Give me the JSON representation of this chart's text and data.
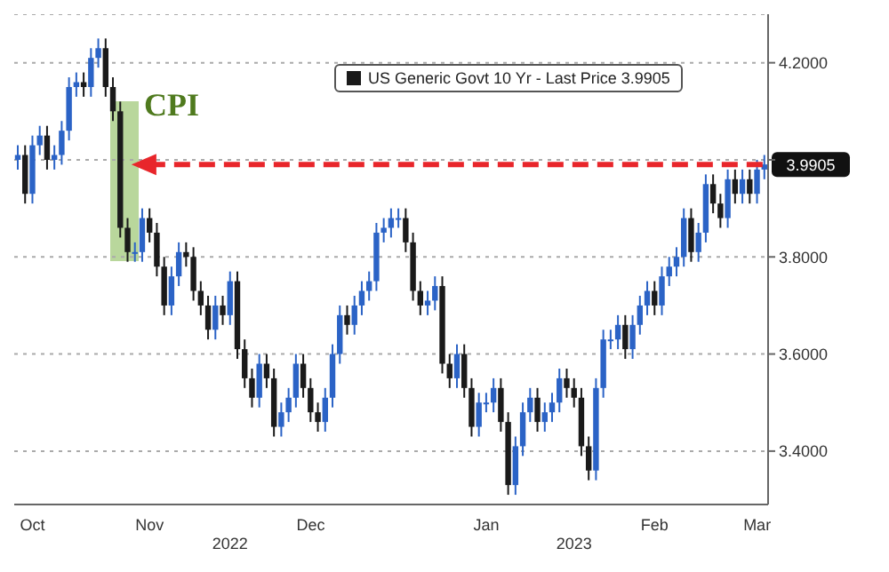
{
  "chart_data": {
    "type": "candlestick",
    "categories": [
      null,
      null,
      "Oct",
      null,
      null,
      null,
      null,
      null,
      null,
      null,
      null,
      null,
      null,
      null,
      null,
      null,
      null,
      null,
      "Nov",
      null,
      null,
      null,
      null,
      null,
      null,
      null,
      null,
      null,
      null,
      null,
      null,
      null,
      null,
      null,
      null,
      null,
      null,
      null,
      null,
      null,
      "Dec",
      null,
      null,
      null,
      null,
      null,
      null,
      null,
      null,
      null,
      null,
      null,
      null,
      null,
      null,
      null,
      null,
      null,
      null,
      null,
      null,
      null,
      null,
      null,
      "Jan",
      null,
      null,
      null,
      null,
      null,
      null,
      null,
      null,
      null,
      null,
      null,
      null,
      null,
      null,
      null,
      null,
      null,
      null,
      null,
      null,
      null,
      null,
      "Feb",
      null,
      null,
      null,
      null,
      null,
      null,
      null,
      null,
      null,
      null,
      null,
      null,
      null,
      "Mar",
      null
    ],
    "series": [
      {
        "name": "US Generic Govt 10 Yr - Last Price 3.9905",
        "color": "#1a1a1a",
        "colors": [
          "#2b63c6",
          "#1a1a1a",
          "#2b63c6",
          "#2b63c6",
          "#1a1a1a",
          "#2b63c6",
          "#2b63c6",
          "#2b63c6",
          "#2b63c6",
          "#1a1a1a",
          "#2b63c6",
          "#2b63c6",
          "#1a1a1a",
          "#1a1a1a",
          "#1a1a1a",
          "#1a1a1a",
          "#2b63c6",
          "#2b63c6",
          "#1a1a1a",
          "#1a1a1a",
          "#1a1a1a",
          "#2b63c6",
          "#2b63c6",
          "#1a1a1a",
          "#1a1a1a",
          "#1a1a1a",
          "#1a1a1a",
          "#2b63c6",
          "#1a1a1a",
          "#2b63c6",
          "#1a1a1a",
          "#1a1a1a",
          "#1a1a1a",
          "#2b63c6",
          "#1a1a1a",
          "#1a1a1a",
          "#2b63c6",
          "#2b63c6",
          "#2b63c6",
          "#1a1a1a",
          "#1a1a1a",
          "#1a1a1a",
          "#2b63c6",
          "#2b63c6",
          "#2b63c6",
          "#1a1a1a",
          "#2b63c6",
          "#2b63c6",
          "#2b63c6",
          "#2b63c6",
          "#2b63c6",
          "#2b63c6",
          "#2b63c6",
          "#1a1a1a",
          "#1a1a1a",
          "#1a1a1a",
          "#2b63c6",
          "#2b63c6",
          "#1a1a1a",
          "#1a1a1a",
          "#2b63c6",
          "#1a1a1a",
          "#1a1a1a",
          "#2b63c6",
          "#2b63c6",
          "#2b63c6",
          "#1a1a1a",
          "#1a1a1a",
          "#2b63c6",
          "#2b63c6",
          "#2b63c6",
          "#1a1a1a",
          "#2b63c6",
          "#2b63c6",
          "#2b63c6",
          "#1a1a1a",
          "#1a1a1a",
          "#1a1a1a",
          "#1a1a1a",
          "#2b63c6",
          "#2b63c6",
          "#2b63c6",
          "#2b63c6",
          "#1a1a1a",
          "#2b63c6",
          "#2b63c6",
          "#2b63c6",
          "#1a1a1a",
          "#2b63c6",
          "#2b63c6",
          "#2b63c6",
          "#2b63c6",
          "#1a1a1a",
          "#2b63c6",
          "#2b63c6",
          "#1a1a1a",
          "#1a1a1a",
          "#2b63c6",
          "#1a1a1a",
          "#2b63c6",
          "#1a1a1a",
          "#2b63c6",
          "#2b63c6"
        ],
        "ohlc": [
          [
            4.0,
            4.03,
            3.98,
            4.01
          ],
          [
            4.01,
            4.03,
            3.91,
            3.93
          ],
          [
            3.93,
            4.05,
            3.91,
            4.03
          ],
          [
            4.03,
            4.07,
            4.01,
            4.05
          ],
          [
            4.05,
            4.07,
            3.98,
            4.0
          ],
          [
            4.0,
            4.03,
            3.98,
            4.01
          ],
          [
            4.01,
            4.08,
            3.99,
            4.06
          ],
          [
            4.06,
            4.17,
            4.04,
            4.15
          ],
          [
            4.15,
            4.18,
            4.13,
            4.16
          ],
          [
            4.16,
            4.18,
            4.13,
            4.15
          ],
          [
            4.15,
            4.23,
            4.13,
            4.21
          ],
          [
            4.21,
            4.25,
            4.19,
            4.23
          ],
          [
            4.23,
            4.25,
            4.13,
            4.15
          ],
          [
            4.15,
            4.17,
            4.08,
            4.1
          ],
          [
            4.1,
            4.12,
            3.84,
            3.86
          ],
          [
            3.86,
            3.88,
            3.79,
            3.81
          ],
          [
            3.81,
            3.83,
            3.79,
            3.81
          ],
          [
            3.81,
            3.9,
            3.79,
            3.88
          ],
          [
            3.88,
            3.9,
            3.83,
            3.85
          ],
          [
            3.85,
            3.87,
            3.76,
            3.78
          ],
          [
            3.78,
            3.8,
            3.68,
            3.7
          ],
          [
            3.7,
            3.78,
            3.68,
            3.76
          ],
          [
            3.76,
            3.83,
            3.74,
            3.81
          ],
          [
            3.81,
            3.83,
            3.78,
            3.8
          ],
          [
            3.8,
            3.82,
            3.71,
            3.73
          ],
          [
            3.73,
            3.75,
            3.68,
            3.7
          ],
          [
            3.7,
            3.72,
            3.63,
            3.65
          ],
          [
            3.65,
            3.72,
            3.63,
            3.7
          ],
          [
            3.7,
            3.72,
            3.66,
            3.68
          ],
          [
            3.68,
            3.77,
            3.66,
            3.75
          ],
          [
            3.75,
            3.77,
            3.59,
            3.61
          ],
          [
            3.61,
            3.63,
            3.53,
            3.55
          ],
          [
            3.55,
            3.57,
            3.49,
            3.51
          ],
          [
            3.51,
            3.6,
            3.49,
            3.58
          ],
          [
            3.58,
            3.6,
            3.53,
            3.55
          ],
          [
            3.55,
            3.57,
            3.43,
            3.45
          ],
          [
            3.45,
            3.5,
            3.43,
            3.48
          ],
          [
            3.48,
            3.53,
            3.46,
            3.51
          ],
          [
            3.51,
            3.6,
            3.49,
            3.58
          ],
          [
            3.58,
            3.6,
            3.51,
            3.53
          ],
          [
            3.53,
            3.55,
            3.46,
            3.48
          ],
          [
            3.48,
            3.5,
            3.44,
            3.46
          ],
          [
            3.46,
            3.53,
            3.44,
            3.51
          ],
          [
            3.51,
            3.62,
            3.49,
            3.6
          ],
          [
            3.6,
            3.7,
            3.58,
            3.68
          ],
          [
            3.68,
            3.7,
            3.64,
            3.66
          ],
          [
            3.66,
            3.72,
            3.64,
            3.7
          ],
          [
            3.7,
            3.75,
            3.68,
            3.73
          ],
          [
            3.73,
            3.77,
            3.71,
            3.75
          ],
          [
            3.75,
            3.87,
            3.73,
            3.85
          ],
          [
            3.85,
            3.88,
            3.83,
            3.86
          ],
          [
            3.86,
            3.9,
            3.84,
            3.88
          ],
          [
            3.88,
            3.9,
            3.86,
            3.88
          ],
          [
            3.88,
            3.9,
            3.81,
            3.83
          ],
          [
            3.83,
            3.85,
            3.71,
            3.73
          ],
          [
            3.73,
            3.75,
            3.68,
            3.7
          ],
          [
            3.7,
            3.73,
            3.68,
            3.71
          ],
          [
            3.71,
            3.76,
            3.69,
            3.74
          ],
          [
            3.74,
            3.76,
            3.56,
            3.58
          ],
          [
            3.58,
            3.6,
            3.53,
            3.55
          ],
          [
            3.55,
            3.62,
            3.53,
            3.6
          ],
          [
            3.6,
            3.62,
            3.51,
            3.53
          ],
          [
            3.53,
            3.55,
            3.43,
            3.45
          ],
          [
            3.45,
            3.52,
            3.43,
            3.5
          ],
          [
            3.5,
            3.52,
            3.48,
            3.5
          ],
          [
            3.5,
            3.55,
            3.48,
            3.53
          ],
          [
            3.53,
            3.55,
            3.44,
            3.46
          ],
          [
            3.46,
            3.48,
            3.31,
            3.33
          ],
          [
            3.33,
            3.43,
            3.31,
            3.41
          ],
          [
            3.41,
            3.5,
            3.39,
            3.48
          ],
          [
            3.48,
            3.53,
            3.46,
            3.51
          ],
          [
            3.51,
            3.53,
            3.44,
            3.46
          ],
          [
            3.46,
            3.5,
            3.44,
            3.48
          ],
          [
            3.48,
            3.52,
            3.46,
            3.5
          ],
          [
            3.5,
            3.57,
            3.48,
            3.55
          ],
          [
            3.55,
            3.57,
            3.51,
            3.53
          ],
          [
            3.53,
            3.55,
            3.49,
            3.51
          ],
          [
            3.51,
            3.53,
            3.39,
            3.41
          ],
          [
            3.41,
            3.43,
            3.34,
            3.36
          ],
          [
            3.36,
            3.55,
            3.34,
            3.53
          ],
          [
            3.53,
            3.65,
            3.51,
            3.63
          ],
          [
            3.63,
            3.65,
            3.61,
            3.63
          ],
          [
            3.63,
            3.68,
            3.61,
            3.66
          ],
          [
            3.66,
            3.68,
            3.59,
            3.61
          ],
          [
            3.61,
            3.68,
            3.59,
            3.66
          ],
          [
            3.66,
            3.72,
            3.64,
            3.7
          ],
          [
            3.7,
            3.75,
            3.68,
            3.73
          ],
          [
            3.73,
            3.75,
            3.68,
            3.7
          ],
          [
            3.7,
            3.78,
            3.68,
            3.76
          ],
          [
            3.76,
            3.8,
            3.74,
            3.78
          ],
          [
            3.78,
            3.82,
            3.76,
            3.8
          ],
          [
            3.8,
            3.9,
            3.78,
            3.88
          ],
          [
            3.88,
            3.9,
            3.79,
            3.81
          ],
          [
            3.81,
            3.87,
            3.79,
            3.85
          ],
          [
            3.85,
            3.97,
            3.83,
            3.95
          ],
          [
            3.95,
            3.97,
            3.89,
            3.91
          ],
          [
            3.91,
            3.93,
            3.86,
            3.88
          ],
          [
            3.88,
            3.98,
            3.86,
            3.96
          ],
          [
            3.96,
            3.98,
            3.91,
            3.93
          ],
          [
            3.93,
            3.98,
            3.91,
            3.96
          ],
          [
            3.96,
            3.98,
            3.91,
            3.93
          ],
          [
            3.93,
            4.0,
            3.91,
            3.98
          ],
          [
            3.98,
            4.01,
            3.96,
            3.9905
          ]
        ]
      }
    ],
    "ylim": [
      3.29,
      4.3
    ],
    "yticks": [
      {
        "value": 3.4,
        "label": "3.4000"
      },
      {
        "value": 3.6,
        "label": "3.6000"
      },
      {
        "value": 3.8,
        "label": "3.8000"
      },
      {
        "value": 4.0,
        "label": null
      },
      {
        "value": 4.2,
        "label": "4.2000"
      }
    ],
    "grid": "y",
    "legend": "top",
    "ref_lines": [
      {
        "axis": "y",
        "value": 3.9905,
        "label": "3.9905",
        "color": "#e8262b",
        "line_style": "dashed"
      }
    ],
    "annotations": [
      "CPI",
      "2022",
      "2023"
    ]
  }
}
